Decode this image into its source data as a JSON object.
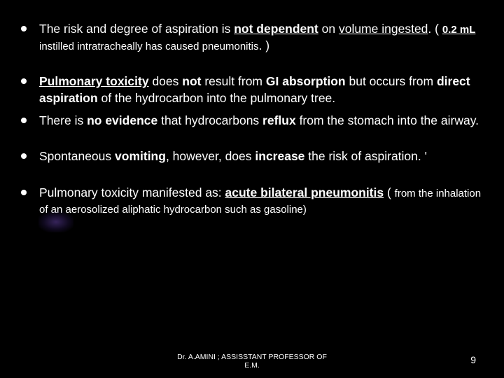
{
  "background_color": "#000000",
  "text_color": "#ffffff",
  "font_family": "Arial",
  "body_fontsize": 17.5,
  "small_fontsize": 15,
  "footer_fontsize": 10.5,
  "bullets": [
    {
      "segments": [
        {
          "t": "The risk and degree of aspiration is "
        },
        {
          "t": "not dependent",
          "bold": true,
          "underline": true
        },
        {
          "t": " on "
        },
        {
          "t": "volume ingested",
          "underline": true
        },
        {
          "t": ". ( "
        },
        {
          "t": "0.2 mL",
          "bold": true,
          "underline": true,
          "small": true
        },
        {
          "t": " instilled intratracheally has caused pneumonitis",
          "small": true
        },
        {
          "t": ". )"
        }
      ],
      "spacing": "normal"
    },
    {
      "segments": [
        {
          "t": "Pulmonary toxicity",
          "bold": true,
          "underline": true
        },
        {
          "t": " does "
        },
        {
          "t": "not",
          "bold": true
        },
        {
          "t": " result from "
        },
        {
          "t": "GI absorption",
          "bold": true
        },
        {
          "t": " but occurs from "
        },
        {
          "t": "direct aspiration",
          "bold": true
        },
        {
          "t": " of the hydrocarbon into the pulmonary tree."
        }
      ],
      "spacing": "tight"
    },
    {
      "segments": [
        {
          "t": "There is "
        },
        {
          "t": "no evidence",
          "bold": true
        },
        {
          "t": " that hydrocarbons "
        },
        {
          "t": "reflux",
          "bold": true
        },
        {
          "t": " from the stomach into the airway."
        }
      ],
      "spacing": "normal"
    },
    {
      "segments": [
        {
          "t": "Spontaneous "
        },
        {
          "t": "vomiting",
          "bold": true
        },
        {
          "t": ", however, does "
        },
        {
          "t": "increase",
          "bold": true
        },
        {
          "t": " the risk of aspiration. '"
        }
      ],
      "spacing": "normal"
    },
    {
      "segments": [
        {
          "t": "Pulmonary toxicity manifested as: "
        },
        {
          "t": "acute bilateral pneumonitis",
          "bold": true,
          "underline": true
        },
        {
          "t": " ( "
        },
        {
          "t": "from the inhalation of an aerosolized aliphatic  hydrocarbon such as gasoline)",
          "small": true
        }
      ],
      "spacing": "normal"
    }
  ],
  "footer_line1": "Dr. A.AMINI ; ASSISSTANT PROFESSOR OF",
  "footer_line2": "E.M.",
  "page_number": "9"
}
